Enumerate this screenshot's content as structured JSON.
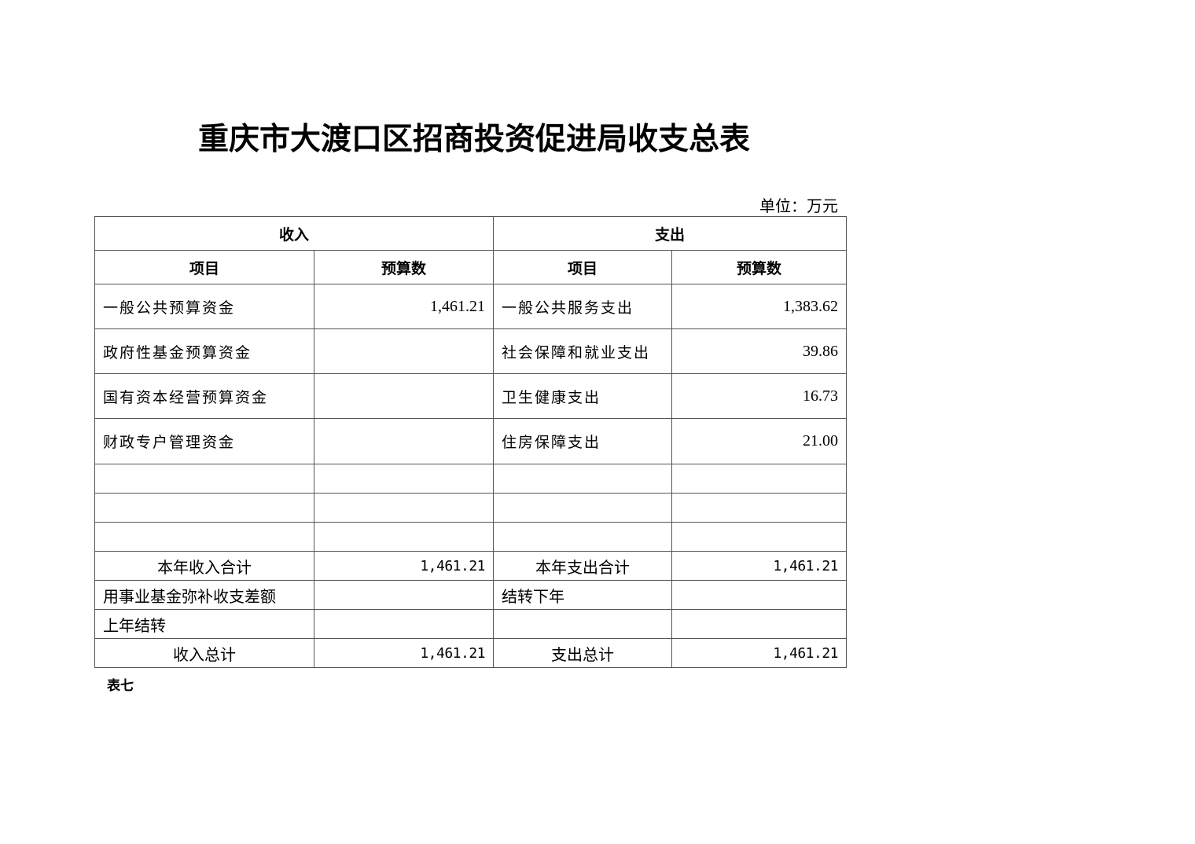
{
  "title": "重庆市大渡口区招商投资促进局收支总表",
  "unit": "单位：万元",
  "header": {
    "income": "收入",
    "expense": "支出",
    "item": "项目",
    "budget": "预算数"
  },
  "rows": [
    {
      "income_item": "一般公共预算资金",
      "income_value": "1,461.21",
      "expense_item": "一般公共服务支出",
      "expense_value": "1,383.62"
    },
    {
      "income_item": "政府性基金预算资金",
      "income_value": "",
      "expense_item": "社会保障和就业支出",
      "expense_value": "39.86"
    },
    {
      "income_item": "国有资本经营预算资金",
      "income_value": "",
      "expense_item": "卫生健康支出",
      "expense_value": "16.73"
    },
    {
      "income_item": "财政专户管理资金",
      "income_value": "",
      "expense_item": "住房保障支出",
      "expense_value": "21.00"
    }
  ],
  "totals": {
    "year_income_label": "本年收入合计",
    "year_income": "1,461.21",
    "year_expense_label": "本年支出合计",
    "year_expense": "1,461.21",
    "fund_label": "用事业基金弥补收支差额",
    "carry_next_label": "结转下年",
    "carry_prev_label": "上年结转",
    "income_total_label": "收入总计",
    "income_total": "1,461.21",
    "expense_total_label": "支出总计",
    "expense_total": "1,461.21"
  },
  "note": "表七"
}
